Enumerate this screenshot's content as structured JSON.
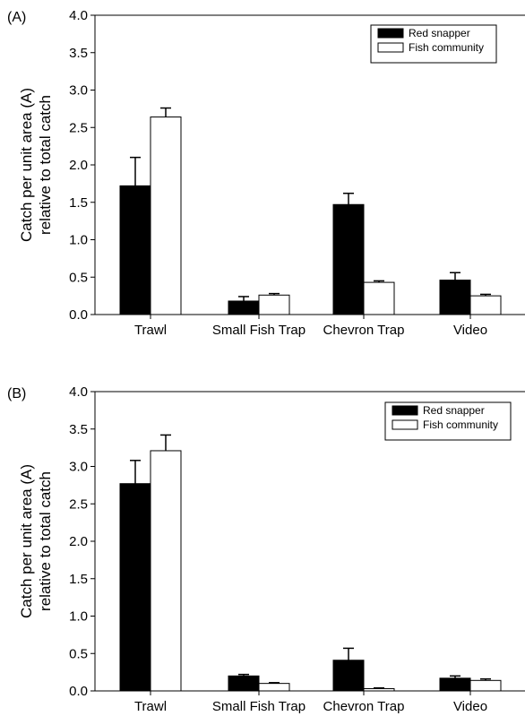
{
  "chart_data": [
    {
      "type": "bar",
      "panel_label": "(A)",
      "categories": [
        "Trawl",
        "Small Fish Trap",
        "Chevron Trap",
        "Video"
      ],
      "series": [
        {
          "name": "Red snapper",
          "values": [
            1.72,
            0.18,
            1.47,
            0.46
          ],
          "errors": [
            0.38,
            0.06,
            0.15,
            0.1
          ],
          "color": "#000000"
        },
        {
          "name": "Fish community",
          "values": [
            2.64,
            0.26,
            0.43,
            0.25
          ],
          "errors": [
            0.12,
            0.02,
            0.02,
            0.02
          ],
          "color": "#ffffff"
        }
      ],
      "ylabel": [
        "Catch per unit area (A)",
        "relative to total catch"
      ],
      "ylim": [
        0,
        4.0
      ],
      "yticks": [
        "0.0",
        "0.5",
        "1.0",
        "1.5",
        "2.0",
        "2.5",
        "3.0",
        "3.5",
        "4.0"
      ],
      "legend_position": "top-right",
      "grid": false
    },
    {
      "type": "bar",
      "panel_label": "(B)",
      "categories": [
        "Trawl",
        "Small Fish Trap",
        "Chevron Trap",
        "Video"
      ],
      "series": [
        {
          "name": "Red snapper",
          "values": [
            2.77,
            0.2,
            0.41,
            0.17
          ],
          "errors": [
            0.31,
            0.02,
            0.16,
            0.03
          ],
          "color": "#000000"
        },
        {
          "name": "Fish community",
          "values": [
            3.21,
            0.1,
            0.03,
            0.14
          ],
          "errors": [
            0.21,
            0.01,
            0.01,
            0.02
          ],
          "color": "#ffffff"
        }
      ],
      "ylabel": [
        "Catch per unit area (A)",
        "relative to total catch"
      ],
      "ylim": [
        0,
        4.0
      ],
      "yticks": [
        "0.0",
        "0.5",
        "1.0",
        "1.5",
        "2.0",
        "2.5",
        "3.0",
        "3.5",
        "4.0"
      ],
      "legend_position": "top-right",
      "grid": false
    }
  ]
}
